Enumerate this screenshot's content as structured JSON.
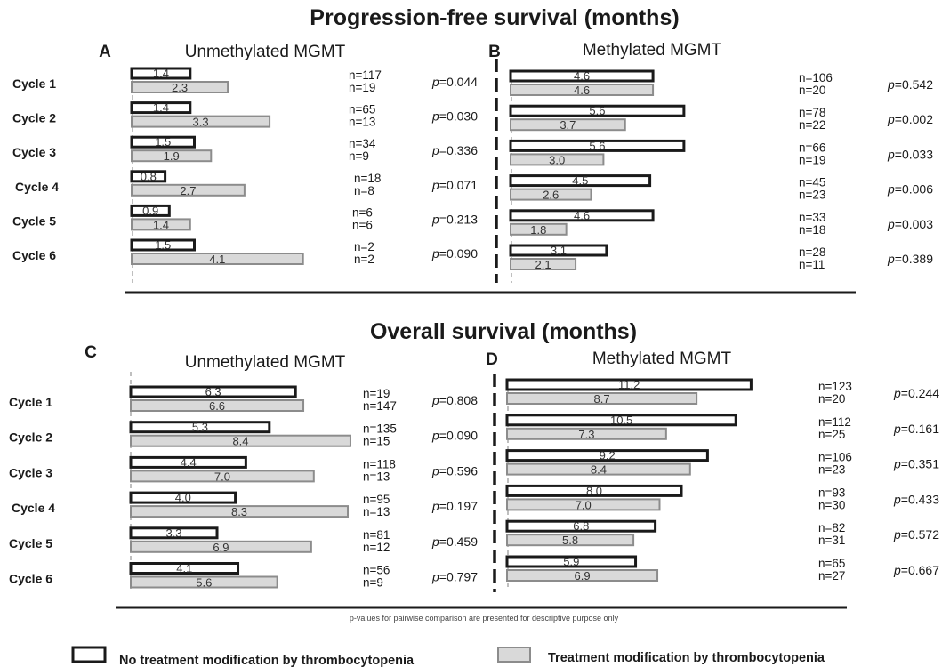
{
  "legend": {
    "no_mod": "No treatment modification by thrombocytopenia",
    "mod": "Treatment modification by thrombocytopenia"
  },
  "footnote": "p-values for pairwise comparison are presented for descriptive purpose only",
  "colors": {
    "no_mod_fill": "#ffffff",
    "no_mod_stroke": "#1a1a1a",
    "mod_fill": "#d9d9d9",
    "mod_stroke": "#8c8c8c"
  },
  "chart_data": [
    {
      "section_title": "Progression-free survival (months)",
      "panels": [
        {
          "letter": "A",
          "subtitle": "Unmethylated MGMT",
          "type": "bar",
          "orientation": "horizontal",
          "categories": [
            "Cycle 1",
            "Cycle 2",
            "Cycle 3",
            "Cycle 4",
            "Cycle 5",
            "Cycle 6"
          ],
          "series": [
            {
              "name": "No treatment modification by thrombocytopenia",
              "values": [
                1.4,
                1.4,
                1.5,
                0.8,
                0.9,
                1.5
              ],
              "labels": [
                "1.4",
                "1.4",
                "1.5",
                "0.8",
                "0.9",
                "1.5"
              ],
              "n": [
                "n=117",
                "n=65",
                "n=34",
                "n=18",
                "n=6",
                "n=2"
              ]
            },
            {
              "name": "Treatment modification by thrombocytopenia",
              "values": [
                2.3,
                3.3,
                1.9,
                2.7,
                1.4,
                4.1
              ],
              "labels": [
                "2.3",
                "3.3",
                "1.9",
                "2.7",
                "1.4",
                "4.1"
              ],
              "n": [
                "n=19",
                "n=13",
                "n=9",
                "n=8",
                "n=6",
                "n=2"
              ]
            }
          ],
          "p_values": [
            "p=0.044",
            "p=0.030",
            "p=0.336",
            "p=0.071",
            "p=0.213",
            "p=0.090"
          ]
        },
        {
          "letter": "B",
          "subtitle": "Methylated MGMT",
          "type": "bar",
          "orientation": "horizontal",
          "categories": [
            "Cycle 1",
            "Cycle 2",
            "Cycle 3",
            "Cycle 4",
            "Cycle 5",
            "Cycle 6"
          ],
          "series": [
            {
              "name": "No treatment modification by thrombocytopenia",
              "values": [
                4.6,
                5.6,
                5.6,
                4.5,
                4.6,
                3.1
              ],
              "labels": [
                "4.6",
                "5.6",
                "5.6",
                "4.5",
                "4.6",
                "3.1"
              ],
              "n": [
                "n=106",
                "n=78",
                "n=66",
                "n=45",
                "n=33",
                "n=28"
              ]
            },
            {
              "name": "Treatment modification by thrombocytopenia",
              "values": [
                4.6,
                3.7,
                3.0,
                2.6,
                1.8,
                2.1
              ],
              "labels": [
                "4.6",
                "3.7",
                "3.0",
                "2.6",
                "1.8",
                "2.1"
              ],
              "n": [
                "n=20",
                "n=22",
                "n=19",
                "n=23",
                "n=18",
                "n=11"
              ]
            }
          ],
          "p_values": [
            "p=0.542",
            "p=0.002",
            "p=0.033",
            "p=0.006",
            "p=0.003",
            "p=0.389"
          ]
        }
      ]
    },
    {
      "section_title": "Overall survival (months)",
      "panels": [
        {
          "letter": "C",
          "subtitle": "Unmethylated MGMT",
          "type": "bar",
          "orientation": "horizontal",
          "categories": [
            "Cycle 1",
            "Cycle 2",
            "Cycle 3",
            "Cycle 4",
            "Cycle 5",
            "Cycle 6"
          ],
          "series": [
            {
              "name": "No treatment modification by thrombocytopenia",
              "values": [
                6.3,
                5.3,
                4.4,
                4.0,
                3.3,
                4.1
              ],
              "labels": [
                "6.3",
                "5.3",
                "4.4",
                "4.0",
                "3.3",
                "4.1"
              ],
              "n": [
                "n=19",
                "n=135",
                "n=118",
                "n=95",
                "n=81",
                "n=56"
              ]
            },
            {
              "name": "Treatment modification by thrombocytopenia",
              "values": [
                6.6,
                8.4,
                7.0,
                8.3,
                6.9,
                5.6
              ],
              "labels": [
                "6.6",
                "8.4",
                "7.0",
                "8.3",
                "6.9",
                "5.6"
              ],
              "n": [
                "n=147",
                "n=15",
                "n=13",
                "n=13",
                "n=12",
                "n=9"
              ]
            }
          ],
          "p_values": [
            "p=0.808",
            "p=0.090",
            "p=0.596",
            "p=0.197",
            "p=0.459",
            "p=0.797"
          ]
        },
        {
          "letter": "D",
          "subtitle": "Methylated MGMT",
          "type": "bar",
          "orientation": "horizontal",
          "categories": [
            "Cycle 1",
            "Cycle 2",
            "Cycle 3",
            "Cycle 4",
            "Cycle 5",
            "Cycle 6"
          ],
          "series": [
            {
              "name": "No treatment modification by thrombocytopenia",
              "values": [
                11.2,
                10.5,
                9.2,
                8.0,
                6.8,
                5.9
              ],
              "labels": [
                "11.2",
                "10.5",
                "9.2",
                "8.0",
                "6.8",
                "5.9"
              ],
              "n": [
                "n=123",
                "n=112",
                "n=106",
                "n=93",
                "n=82",
                "n=65"
              ]
            },
            {
              "name": "Treatment modification by thrombocytopenia",
              "values": [
                8.7,
                7.3,
                8.4,
                7.0,
                5.8,
                6.9
              ],
              "labels": [
                "8.7",
                "7.3",
                "8.4",
                "7.0",
                "5.8",
                "6.9"
              ],
              "n": [
                "n=20",
                "n=25",
                "n=23",
                "n=30",
                "n=31",
                "n=27"
              ]
            }
          ],
          "p_values": [
            "p=0.244",
            "p=0.161",
            "p=0.351",
            "p=0.433",
            "p=0.572",
            "p=0.667"
          ]
        }
      ]
    }
  ]
}
